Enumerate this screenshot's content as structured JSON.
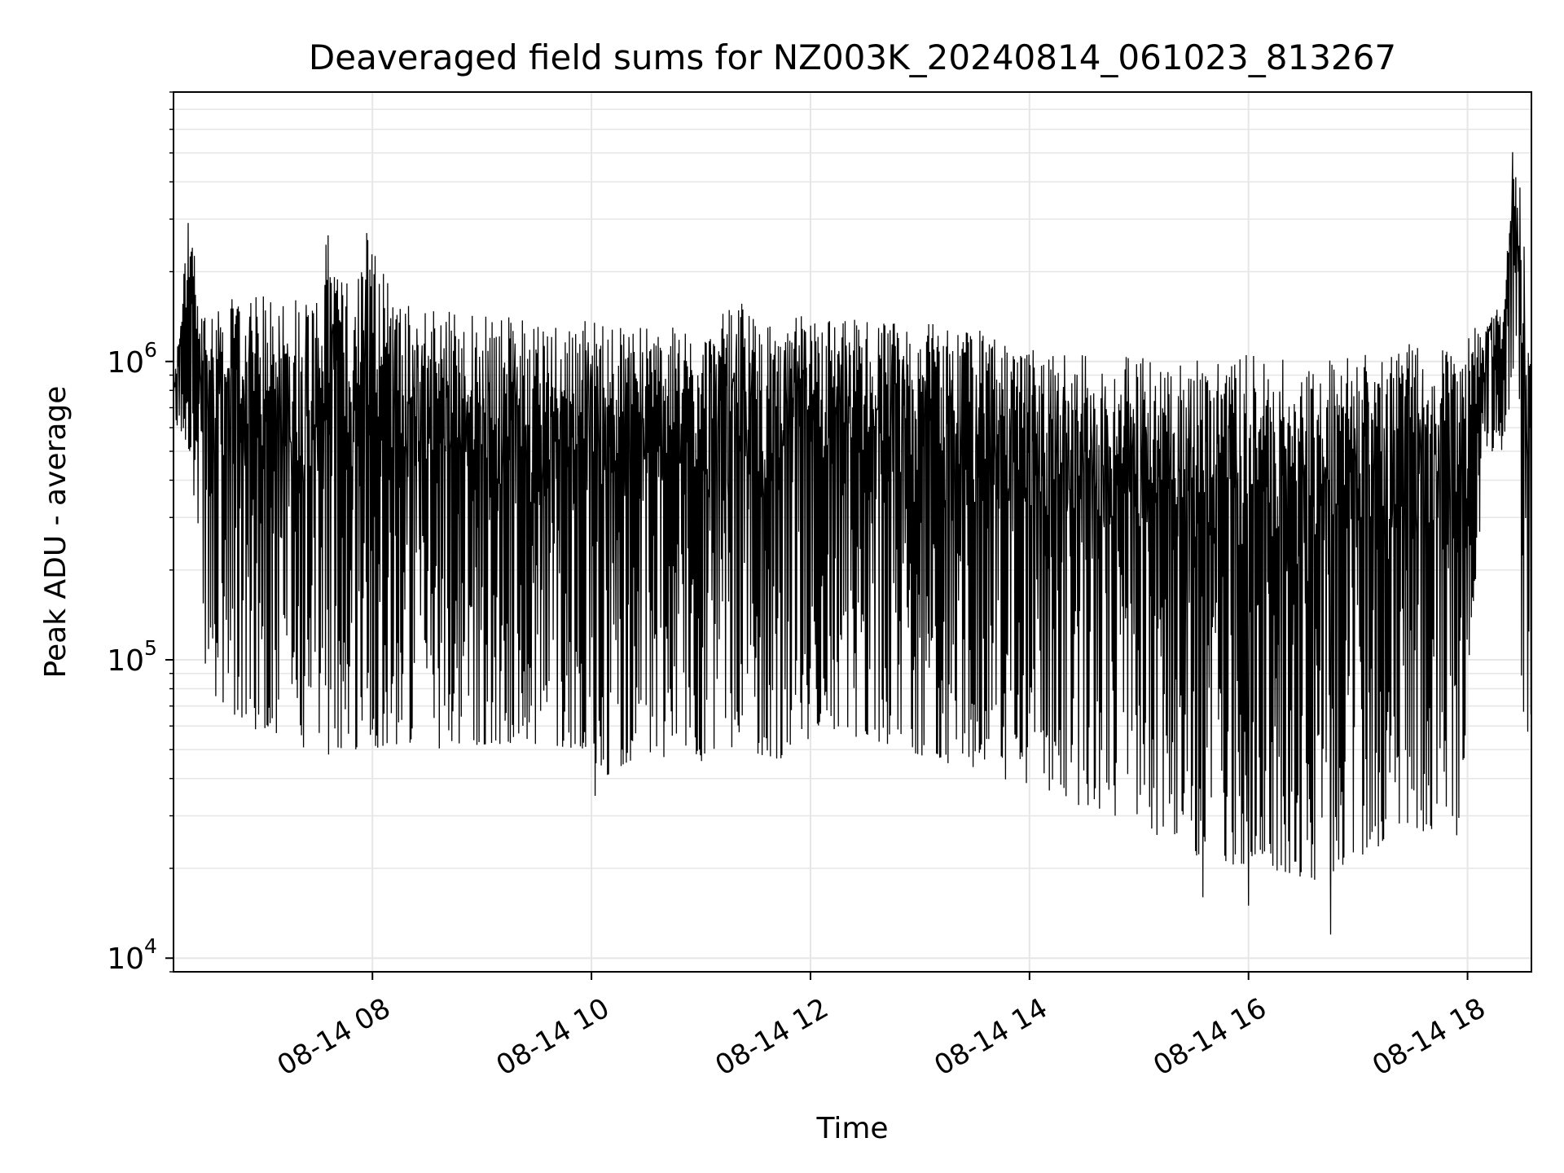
{
  "chart_data": {
    "type": "line",
    "title": "Deaveraged field sums for NZ003K_20240814_061023_813267",
    "xlabel": "Time",
    "ylabel": "Peak ADU - average",
    "yscale": "log",
    "ylim": [
      9000,
      8000000
    ],
    "xlim": [
      "2024-08-14 06:11",
      "2024-08-14 18:35"
    ],
    "xticks": [
      "08-14 08",
      "08-14 10",
      "08-14 12",
      "08-14 14",
      "08-14 16",
      "08-14 18"
    ],
    "xtick_times": [
      "2024-08-14 08:00",
      "2024-08-14 10:00",
      "2024-08-14 12:00",
      "2024-08-14 14:00",
      "2024-08-14 16:00",
      "2024-08-14 18:00"
    ],
    "yticks": [
      {
        "base": "10",
        "exp": "4",
        "value": 10000
      },
      {
        "base": "10",
        "exp": "5",
        "value": 100000
      },
      {
        "base": "10",
        "exp": "6",
        "value": 1000000
      }
    ],
    "grid": true,
    "line_color": "#000000",
    "grid_color": "#e6e6e6",
    "series": [
      {
        "x": [
          "2024-08-14 06:11",
          "2024-08-14 06:20",
          "2024-08-14 06:25",
          "2024-08-14 06:35",
          "2024-08-14 06:50",
          "2024-08-14 07:10",
          "2024-08-14 07:30",
          "2024-08-14 07:36",
          "2024-08-14 07:50",
          "2024-08-14 07:55",
          "2024-08-14 08:15",
          "2024-08-14 08:30",
          "2024-08-14 09:00",
          "2024-08-14 09:30",
          "2024-08-14 10:00",
          "2024-08-14 10:05",
          "2024-08-14 10:30",
          "2024-08-14 11:00",
          "2024-08-14 11:20",
          "2024-08-14 11:40",
          "2024-08-14 12:00",
          "2024-08-14 12:30",
          "2024-08-14 13:00",
          "2024-08-14 13:30",
          "2024-08-14 14:00",
          "2024-08-14 14:30",
          "2024-08-14 15:00",
          "2024-08-14 15:30",
          "2024-08-14 16:00",
          "2024-08-14 16:40",
          "2024-08-14 17:00",
          "2024-08-14 17:30",
          "2024-08-14 17:55",
          "2024-08-14 18:10",
          "2024-08-14 18:20",
          "2024-08-14 18:25",
          "2024-08-14 18:30",
          "2024-08-14 18:35"
        ],
        "upper": [
          800000,
          3500000,
          1500000,
          1600000,
          1650000,
          1700000,
          1700000,
          2800000,
          1600000,
          3100000,
          1600000,
          1550000,
          1450000,
          1400000,
          1400000,
          1350000,
          1350000,
          1250000,
          1600000,
          1300000,
          1500000,
          1400000,
          1350000,
          1300000,
          1100000,
          1050000,
          1050000,
          1050000,
          1050000,
          1000000,
          1100000,
          1150000,
          1150000,
          1400000,
          1600000,
          5500000,
          3500000,
          900000
        ],
        "lower": [
          600000,
          500000,
          120000,
          65000,
          60000,
          55000,
          48000,
          48000,
          50000,
          50000,
          52000,
          50000,
          52000,
          52000,
          50000,
          40000,
          48000,
          45000,
          52000,
          45000,
          55000,
          55000,
          48000,
          42000,
          38000,
          32000,
          28000,
          22000,
          20000,
          18000,
          22000,
          25000,
          25000,
          500000,
          500000,
          800000,
          70000,
          48000
        ],
        "min_points": [
          [
            "2024-08-14 10:02",
            35000
          ],
          [
            "2024-08-14 15:35",
            16000
          ],
          [
            "2024-08-14 16:45",
            12000
          ],
          [
            "2024-08-14 16:00",
            15000
          ]
        ]
      }
    ]
  }
}
